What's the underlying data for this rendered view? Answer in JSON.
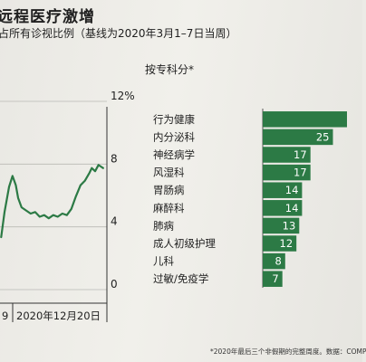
{
  "header": {
    "title": "远程医疗激增",
    "subtitle": "占所有诊视比例（基线为2020年3月1–7日当周）"
  },
  "bar_section": {
    "title": "按专科分*"
  },
  "footnote": "*2020年最后三个非假期的完整周度。数据：COMP",
  "colors": {
    "bar": "#2c7a45",
    "line": "#2c7a45",
    "axis": "#333333"
  },
  "chart_data": [
    {
      "type": "line",
      "title": "",
      "xlabel": "",
      "ylabel": "",
      "ylim": [
        0,
        12
      ],
      "yticks": [
        "0",
        "4",
        "8",
        "12%"
      ],
      "xticks": [
        "9",
        "2020年12月20日"
      ],
      "series": [
        {
          "values": [
            [
              0.05,
              3.0
            ],
            [
              0.2,
              4.6
            ],
            [
              0.4,
              6.2
            ],
            [
              0.55,
              6.9
            ],
            [
              0.7,
              6.3
            ],
            [
              0.8,
              5.5
            ],
            [
              0.95,
              4.9
            ],
            [
              1.15,
              4.7
            ],
            [
              1.35,
              4.5
            ],
            [
              1.55,
              4.6
            ],
            [
              1.75,
              4.3
            ],
            [
              1.95,
              4.4
            ],
            [
              2.15,
              4.2
            ],
            [
              2.35,
              4.4
            ],
            [
              2.55,
              4.3
            ],
            [
              2.75,
              4.5
            ],
            [
              2.95,
              4.4
            ],
            [
              3.15,
              4.8
            ],
            [
              3.35,
              5.6
            ],
            [
              3.55,
              6.3
            ],
            [
              3.75,
              6.6
            ],
            [
              3.95,
              7.1
            ],
            [
              4.05,
              7.4
            ],
            [
              4.2,
              7.2
            ],
            [
              4.35,
              7.6
            ],
            [
              4.45,
              7.5
            ],
            [
              4.55,
              7.4
            ]
          ]
        }
      ],
      "grid": true
    },
    {
      "type": "bar",
      "title": "",
      "categories": [
        "行为健康",
        "内分泌科",
        "神经病学",
        "风湿科",
        "胃肠病",
        "麻醉科",
        "肺病",
        "成人初级护理",
        "儿科",
        "过敏/免疫学"
      ],
      "values": [
        30,
        25,
        17,
        17,
        14,
        14,
        13,
        12,
        8,
        7
      ],
      "labels": [
        "",
        "25",
        "17",
        "17",
        "14",
        "14",
        "13",
        "12",
        "8",
        "7"
      ],
      "xlim": [
        0,
        30
      ]
    }
  ]
}
